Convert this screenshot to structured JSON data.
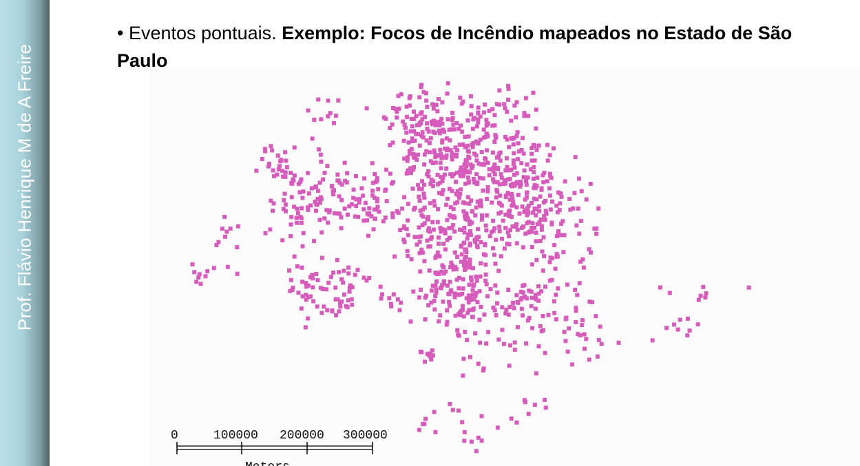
{
  "sidebar": {
    "author": "Prof. Flávio Henrique M de A Freire"
  },
  "slide": {
    "bullet": "•",
    "title_plain": "Eventos pontuais.",
    "title_bold": "Exemplo: Focos de Incêndio mapeados no Estado de São Paulo"
  },
  "map": {
    "point_color": "#d65cbc",
    "point_icon": "fire-hotspot-point",
    "scale_bar": {
      "ticks": [
        "0",
        "100000",
        "200000",
        "300000"
      ],
      "unit": "Meters"
    }
  }
}
